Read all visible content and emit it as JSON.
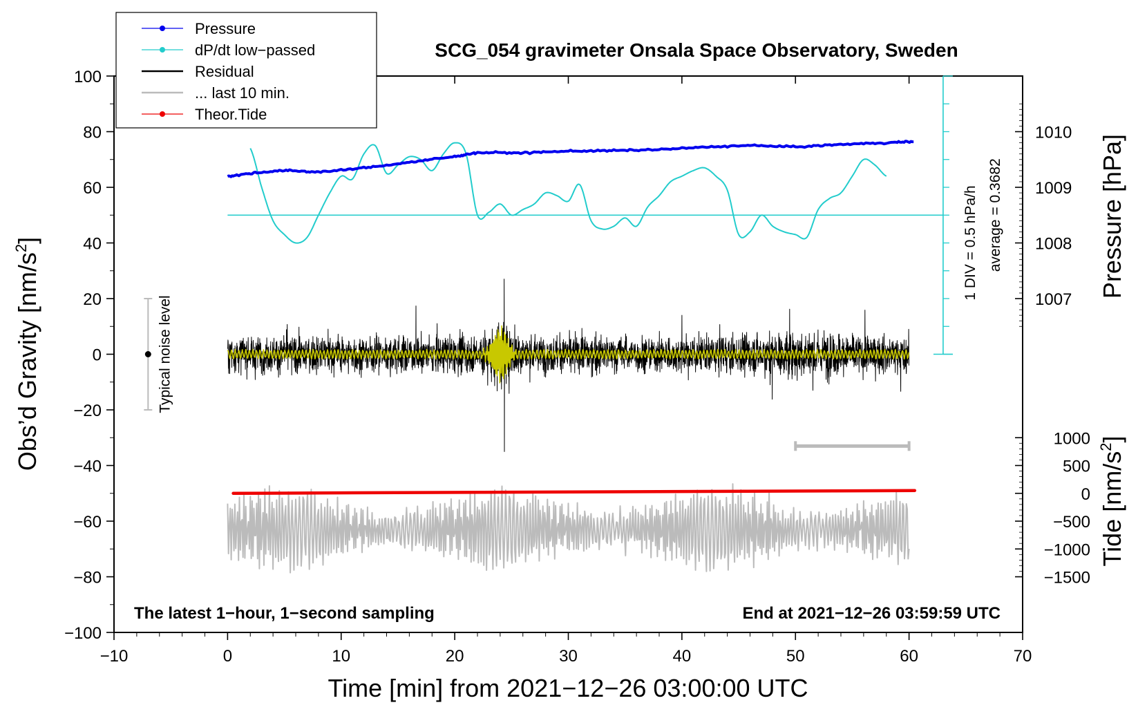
{
  "chart_data": {
    "type": "line",
    "title": "SCG_054 gravimeter Onsala Space Observatory, Sweden",
    "xlabel": "Time [min] from 2021−12−26 03:00:00 UTC",
    "ylabel_left": "Obs’d Gravity [nm/s",
    "ylabel_left_sup": "2",
    "ylabel_left_end": "]",
    "ylabel_right_top": "Pressure [hPa]",
    "ylabel_right_bottom": "Tide [nm/s",
    "ylabel_right_bottom_sup": "2",
    "ylabel_right_bottom_end": "]",
    "xlim": [
      -10,
      70
    ],
    "ylim": [
      -100,
      100
    ],
    "x_ticks": [
      -10,
      0,
      10,
      20,
      30,
      40,
      50,
      60,
      70
    ],
    "x_tick_labels": [
      "−10",
      "0",
      "10",
      "20",
      "30",
      "40",
      "50",
      "60",
      "70"
    ],
    "y_ticks": [
      -100,
      -80,
      -60,
      -40,
      -20,
      0,
      20,
      40,
      60,
      80,
      100
    ],
    "y_tick_labels": [
      "−100",
      "−80",
      "−60",
      "−40",
      "−20",
      "0",
      "20",
      "40",
      "60",
      "80",
      "100"
    ],
    "pressure_axis": {
      "ticks": [
        1007,
        1008,
        1009,
        1010
      ],
      "labels": [
        "1007",
        "1008",
        "1009",
        "1010"
      ],
      "ref_value": 1009,
      "ref_y": 60,
      "nm_per_hpa": 20
    },
    "tide_axis": {
      "ticks": [
        -1500,
        -1000,
        -500,
        0,
        500,
        1000
      ],
      "labels": [
        "−1500",
        "−1000",
        "−500",
        "0",
        "500",
        "1000"
      ],
      "ref_y": -50,
      "nm_per_unit": 0.02
    },
    "legend": {
      "position": "top-left",
      "entries": [
        {
          "label": "Pressure",
          "color": "#0000ee",
          "marker": true
        },
        {
          "label": "dP/dt low−passed",
          "color": "#22cccc",
          "marker": true
        },
        {
          "label": "Residual",
          "color": "#000000",
          "marker": false
        },
        {
          "label": "... last 10 min.",
          "color": "#bbbbbb",
          "marker": false
        },
        {
          "label": "Theor.Tide",
          "color": "#ee0000",
          "marker": true
        }
      ]
    },
    "series": {
      "pressure": {
        "name": "Pressure",
        "color": "#0000ee",
        "x": [
          0,
          2,
          5,
          8,
          12,
          16,
          20,
          22,
          26,
          30,
          34,
          38,
          42,
          46,
          50,
          54,
          58,
          60.4
        ],
        "hpa": [
          1009.2,
          1009.25,
          1009.3,
          1009.28,
          1009.35,
          1009.45,
          1009.55,
          1009.62,
          1009.62,
          1009.65,
          1009.66,
          1009.68,
          1009.72,
          1009.75,
          1009.73,
          1009.77,
          1009.8,
          1009.82
        ]
      },
      "dpdt": {
        "name": "dP/dt low−passed",
        "color": "#22cccc",
        "average_y": 50,
        "x": [
          2,
          3,
          4,
          5,
          6,
          7,
          8,
          9,
          10,
          11,
          12,
          13,
          14,
          15,
          16,
          17,
          18,
          19,
          20,
          21,
          22,
          23,
          24,
          25,
          26,
          27,
          28,
          29,
          30,
          31,
          32,
          33,
          34,
          35,
          36,
          37,
          38,
          39,
          40,
          41,
          42,
          43,
          44,
          45,
          46,
          47,
          48,
          49,
          50,
          51,
          52,
          53,
          54,
          55,
          56,
          57,
          58
        ],
        "y": [
          74,
          60,
          48,
          43,
          40,
          42,
          50,
          58,
          64,
          63,
          72,
          75,
          65,
          68,
          71,
          70,
          66,
          72,
          76,
          72,
          50,
          51,
          54,
          50,
          52,
          54,
          58,
          57,
          55,
          61,
          48,
          45,
          46,
          49,
          46,
          53,
          57,
          62,
          64,
          66,
          67,
          64,
          59,
          43,
          44,
          50,
          46,
          44,
          43,
          42,
          52,
          56,
          58,
          64,
          70,
          68,
          64
        ]
      },
      "residual": {
        "name": "Residual",
        "color": "#000000",
        "x_range": [
          0,
          60
        ],
        "base_amplitude": 7,
        "event_center": 24,
        "event_peak": [
          27,
          -35
        ]
      },
      "filtered": {
        "name": "low−passed residual",
        "color": "#c8c800",
        "event_amplitude": 9
      },
      "last10": {
        "name": "... last 10 min.",
        "color": "#bbbbbb",
        "x_range": [
          0,
          60
        ],
        "center_y": -63,
        "range_y": [
          -80,
          -39
        ]
      },
      "tide": {
        "name": "Theor.Tide",
        "color": "#ee0000",
        "x": [
          0.5,
          60.5
        ],
        "nms2": [
          0,
          50
        ]
      }
    },
    "annotations": {
      "noise_label": "Typical noise level",
      "noise_range": [
        -20,
        20
      ],
      "noise_x": -7,
      "scale_text_1": "1 DIV = 0.5 hPa/h",
      "scale_text_2": "average = 0.3682",
      "scale_bar_x": 63,
      "scale_bar_range": [
        0,
        100
      ],
      "gray_bar": {
        "x": [
          50,
          60
        ],
        "y": -33
      },
      "bottom_left": "The latest 1−hour, 1−second sampling",
      "bottom_right": "End at 2021−12−26 03:59:59 UTC"
    }
  }
}
